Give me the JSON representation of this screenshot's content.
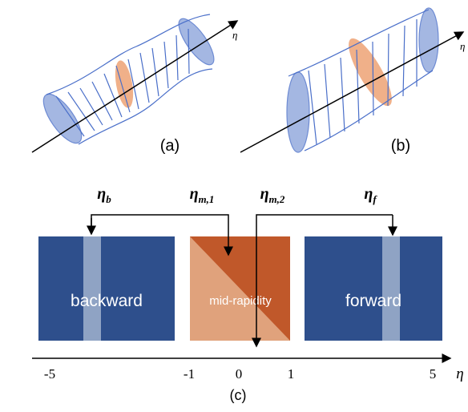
{
  "panels": {
    "a": {
      "label": "(a)",
      "axis": "η"
    },
    "b": {
      "label": "(b)",
      "axis": "η"
    },
    "c": {
      "label": "(c)",
      "axis": "η",
      "windows": [
        {
          "symbol": "η",
          "subscript": "b"
        },
        {
          "symbol": "η",
          "subscript": "m,1"
        },
        {
          "symbol": "η",
          "subscript": "m,2"
        },
        {
          "symbol": "η",
          "subscript": "f"
        }
      ],
      "regions": [
        "backward",
        "mid-rapidity",
        "forward"
      ],
      "ticks": [
        "-5",
        "-1",
        "0",
        "1",
        "5"
      ]
    }
  }
}
